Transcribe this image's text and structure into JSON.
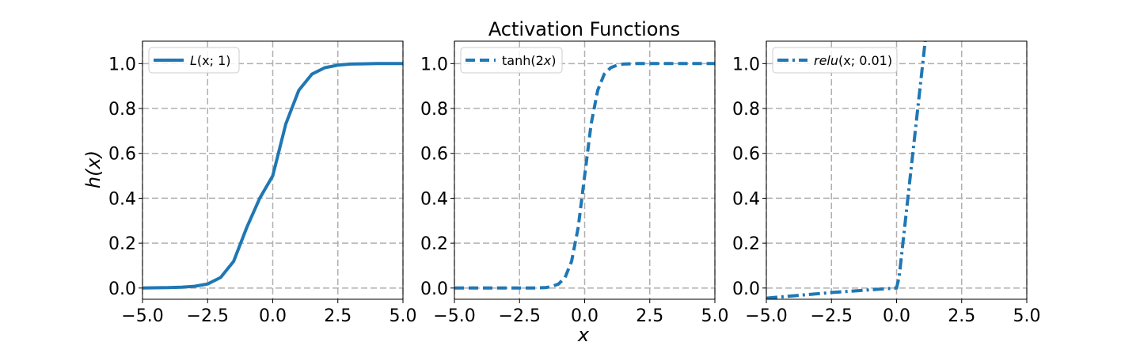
{
  "figure": {
    "title": "Activation Functions",
    "xlabel": "x",
    "ylabel": "h(x)"
  },
  "colors": {
    "line": "#1f77b4",
    "grid": "#b0b0b0",
    "axes": "#000000"
  },
  "chart_data": [
    {
      "type": "line",
      "xlim": [
        -5.0,
        5.0
      ],
      "ylim": [
        -0.05,
        1.1
      ],
      "xticks": [
        "−5.0",
        "−2.5",
        "0.0",
        "2.5",
        "5.0"
      ],
      "yticks": [
        "0.0",
        "0.2",
        "0.4",
        "0.6",
        "0.8",
        "1.0"
      ],
      "grid": true,
      "legend_position": "top-left",
      "line_style": "solid",
      "legend": {
        "prefix": "",
        "func": "L",
        "args": "(x; 1)"
      },
      "series": [
        {
          "name": "L(x; 1)",
          "x": [
            -5.0,
            -4.5,
            -4.0,
            -3.5,
            -3.0,
            -2.5,
            -2.0,
            -1.5,
            -1.0,
            -0.5,
            0.0,
            0.5,
            1.0,
            1.5,
            2.0,
            2.5,
            3.0,
            3.5,
            4.0,
            4.5,
            5.0
          ],
          "y": [
            0.0,
            0.001,
            0.002,
            0.004,
            0.008,
            0.018,
            0.047,
            0.119,
            0.269,
            0.4,
            0.5,
            0.731,
            0.881,
            0.953,
            0.982,
            0.993,
            0.998,
            0.999,
            1.0,
            1.0,
            1.0
          ]
        }
      ]
    },
    {
      "type": "line",
      "xlim": [
        -5.0,
        5.0
      ],
      "ylim": [
        -0.05,
        1.1
      ],
      "xticks": [
        "−5.0",
        "−2.5",
        "0.0",
        "2.5",
        "5.0"
      ],
      "yticks": [
        "0.0",
        "0.2",
        "0.4",
        "0.6",
        "0.8",
        "1.0"
      ],
      "grid": true,
      "legend_position": "top-left",
      "line_style": "dashed",
      "legend": {
        "prefix": "tanh(2",
        "func": "x",
        "args": ")"
      },
      "series": [
        {
          "name": "tanh(2x)",
          "x": [
            -5.0,
            -4.0,
            -3.0,
            -2.0,
            -1.5,
            -1.25,
            -1.0,
            -0.75,
            -0.5,
            -0.25,
            0.0,
            0.25,
            0.5,
            0.75,
            1.0,
            1.25,
            1.5,
            2.0,
            3.0,
            4.0,
            5.0
          ],
          "y": [
            0.0,
            0.0,
            0.0,
            0.0,
            0.002,
            0.007,
            0.018,
            0.047,
            0.119,
            0.269,
            0.5,
            0.731,
            0.881,
            0.953,
            0.982,
            0.993,
            0.998,
            1.0,
            1.0,
            1.0,
            1.0
          ]
        }
      ]
    },
    {
      "type": "line",
      "xlim": [
        -5.0,
        5.0
      ],
      "ylim": [
        -0.05,
        1.1
      ],
      "xticks": [
        "−5.0",
        "−2.5",
        "0.0",
        "2.5",
        "5.0"
      ],
      "yticks": [
        "0.0",
        "0.2",
        "0.4",
        "0.6",
        "0.8",
        "1.0"
      ],
      "grid": true,
      "legend_position": "top-left",
      "line_style": "dashdot",
      "legend": {
        "prefix": "",
        "func": "relu",
        "args": "(x; 0.01)"
      },
      "series": [
        {
          "name": "relu(x; 0.01)",
          "x": [
            -5.0,
            -2.5,
            0.0,
            0.1,
            1.12
          ],
          "y": [
            -0.045,
            -0.02,
            0.0,
            0.05,
            1.12
          ]
        }
      ]
    }
  ]
}
